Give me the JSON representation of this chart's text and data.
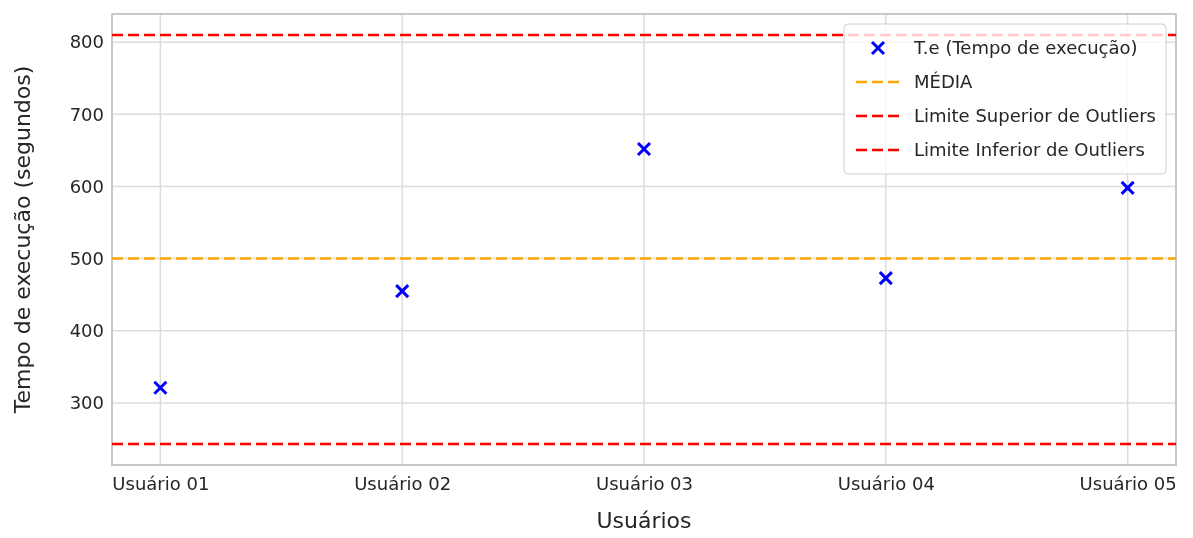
{
  "chart_data": {
    "type": "scatter",
    "xlabel": "Usuários",
    "ylabel": "Tempo de execução (segundos)",
    "categories": [
      "Usuário 01",
      "Usuário 02",
      "Usuário 03",
      "Usuário 04",
      "Usuário 05"
    ],
    "series": [
      {
        "name": "T.e (Tempo de execução)",
        "color": "#0000ff",
        "values": [
          321,
          455,
          652,
          473,
          598
        ]
      }
    ],
    "ylim": [
      214,
      839
    ],
    "yticks": [
      300,
      400,
      500,
      600,
      700,
      800
    ],
    "ref_lines": [
      {
        "axis": "y",
        "value": 500,
        "label": "MÉDIA",
        "color": "#ffa500",
        "line_style": "dashed"
      },
      {
        "axis": "y",
        "value": 810,
        "label": "Limite Superior de Outliers",
        "color": "#ff0000",
        "line_style": "dashed"
      },
      {
        "axis": "y",
        "value": 243,
        "label": "Limite Inferior de Outliers",
        "color": "#ff0000",
        "line_style": "dashed"
      }
    ],
    "grid": true,
    "legend": "top right",
    "marker": "cross"
  }
}
